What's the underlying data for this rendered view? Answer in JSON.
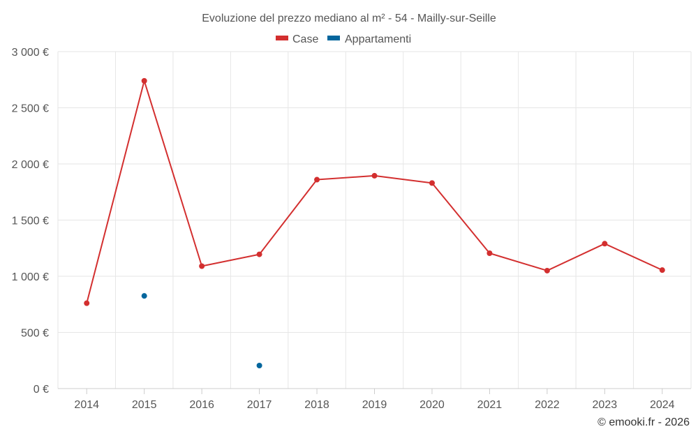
{
  "chart_data": {
    "type": "line",
    "title": "Evoluzione del prezzo mediano al m² - 54 - Mailly-sur-Seille",
    "categories": [
      "2014",
      "2015",
      "2016",
      "2017",
      "2018",
      "2019",
      "2020",
      "2021",
      "2022",
      "2023",
      "2024"
    ],
    "series": [
      {
        "name": "Case",
        "color": "#d32f2f",
        "values": [
          760,
          2740,
          1090,
          1195,
          1860,
          1895,
          1830,
          1205,
          1050,
          1290,
          1055
        ]
      },
      {
        "name": "Appartamenti",
        "color": "#03669d",
        "values": [
          null,
          825,
          null,
          205,
          null,
          null,
          null,
          null,
          null,
          null,
          null
        ]
      }
    ],
    "ylim": [
      0,
      3000
    ],
    "yticks": [
      0,
      500,
      1000,
      1500,
      2000,
      2500,
      3000
    ],
    "ytick_labels": [
      "0 €",
      "500 €",
      "1 000 €",
      "1 500 €",
      "2 000 €",
      "2 500 €",
      "3 000 €"
    ],
    "grid": true,
    "legend": "top-center",
    "xlabel": "",
    "ylabel": ""
  },
  "credit": "© emooki.fr - 2026"
}
